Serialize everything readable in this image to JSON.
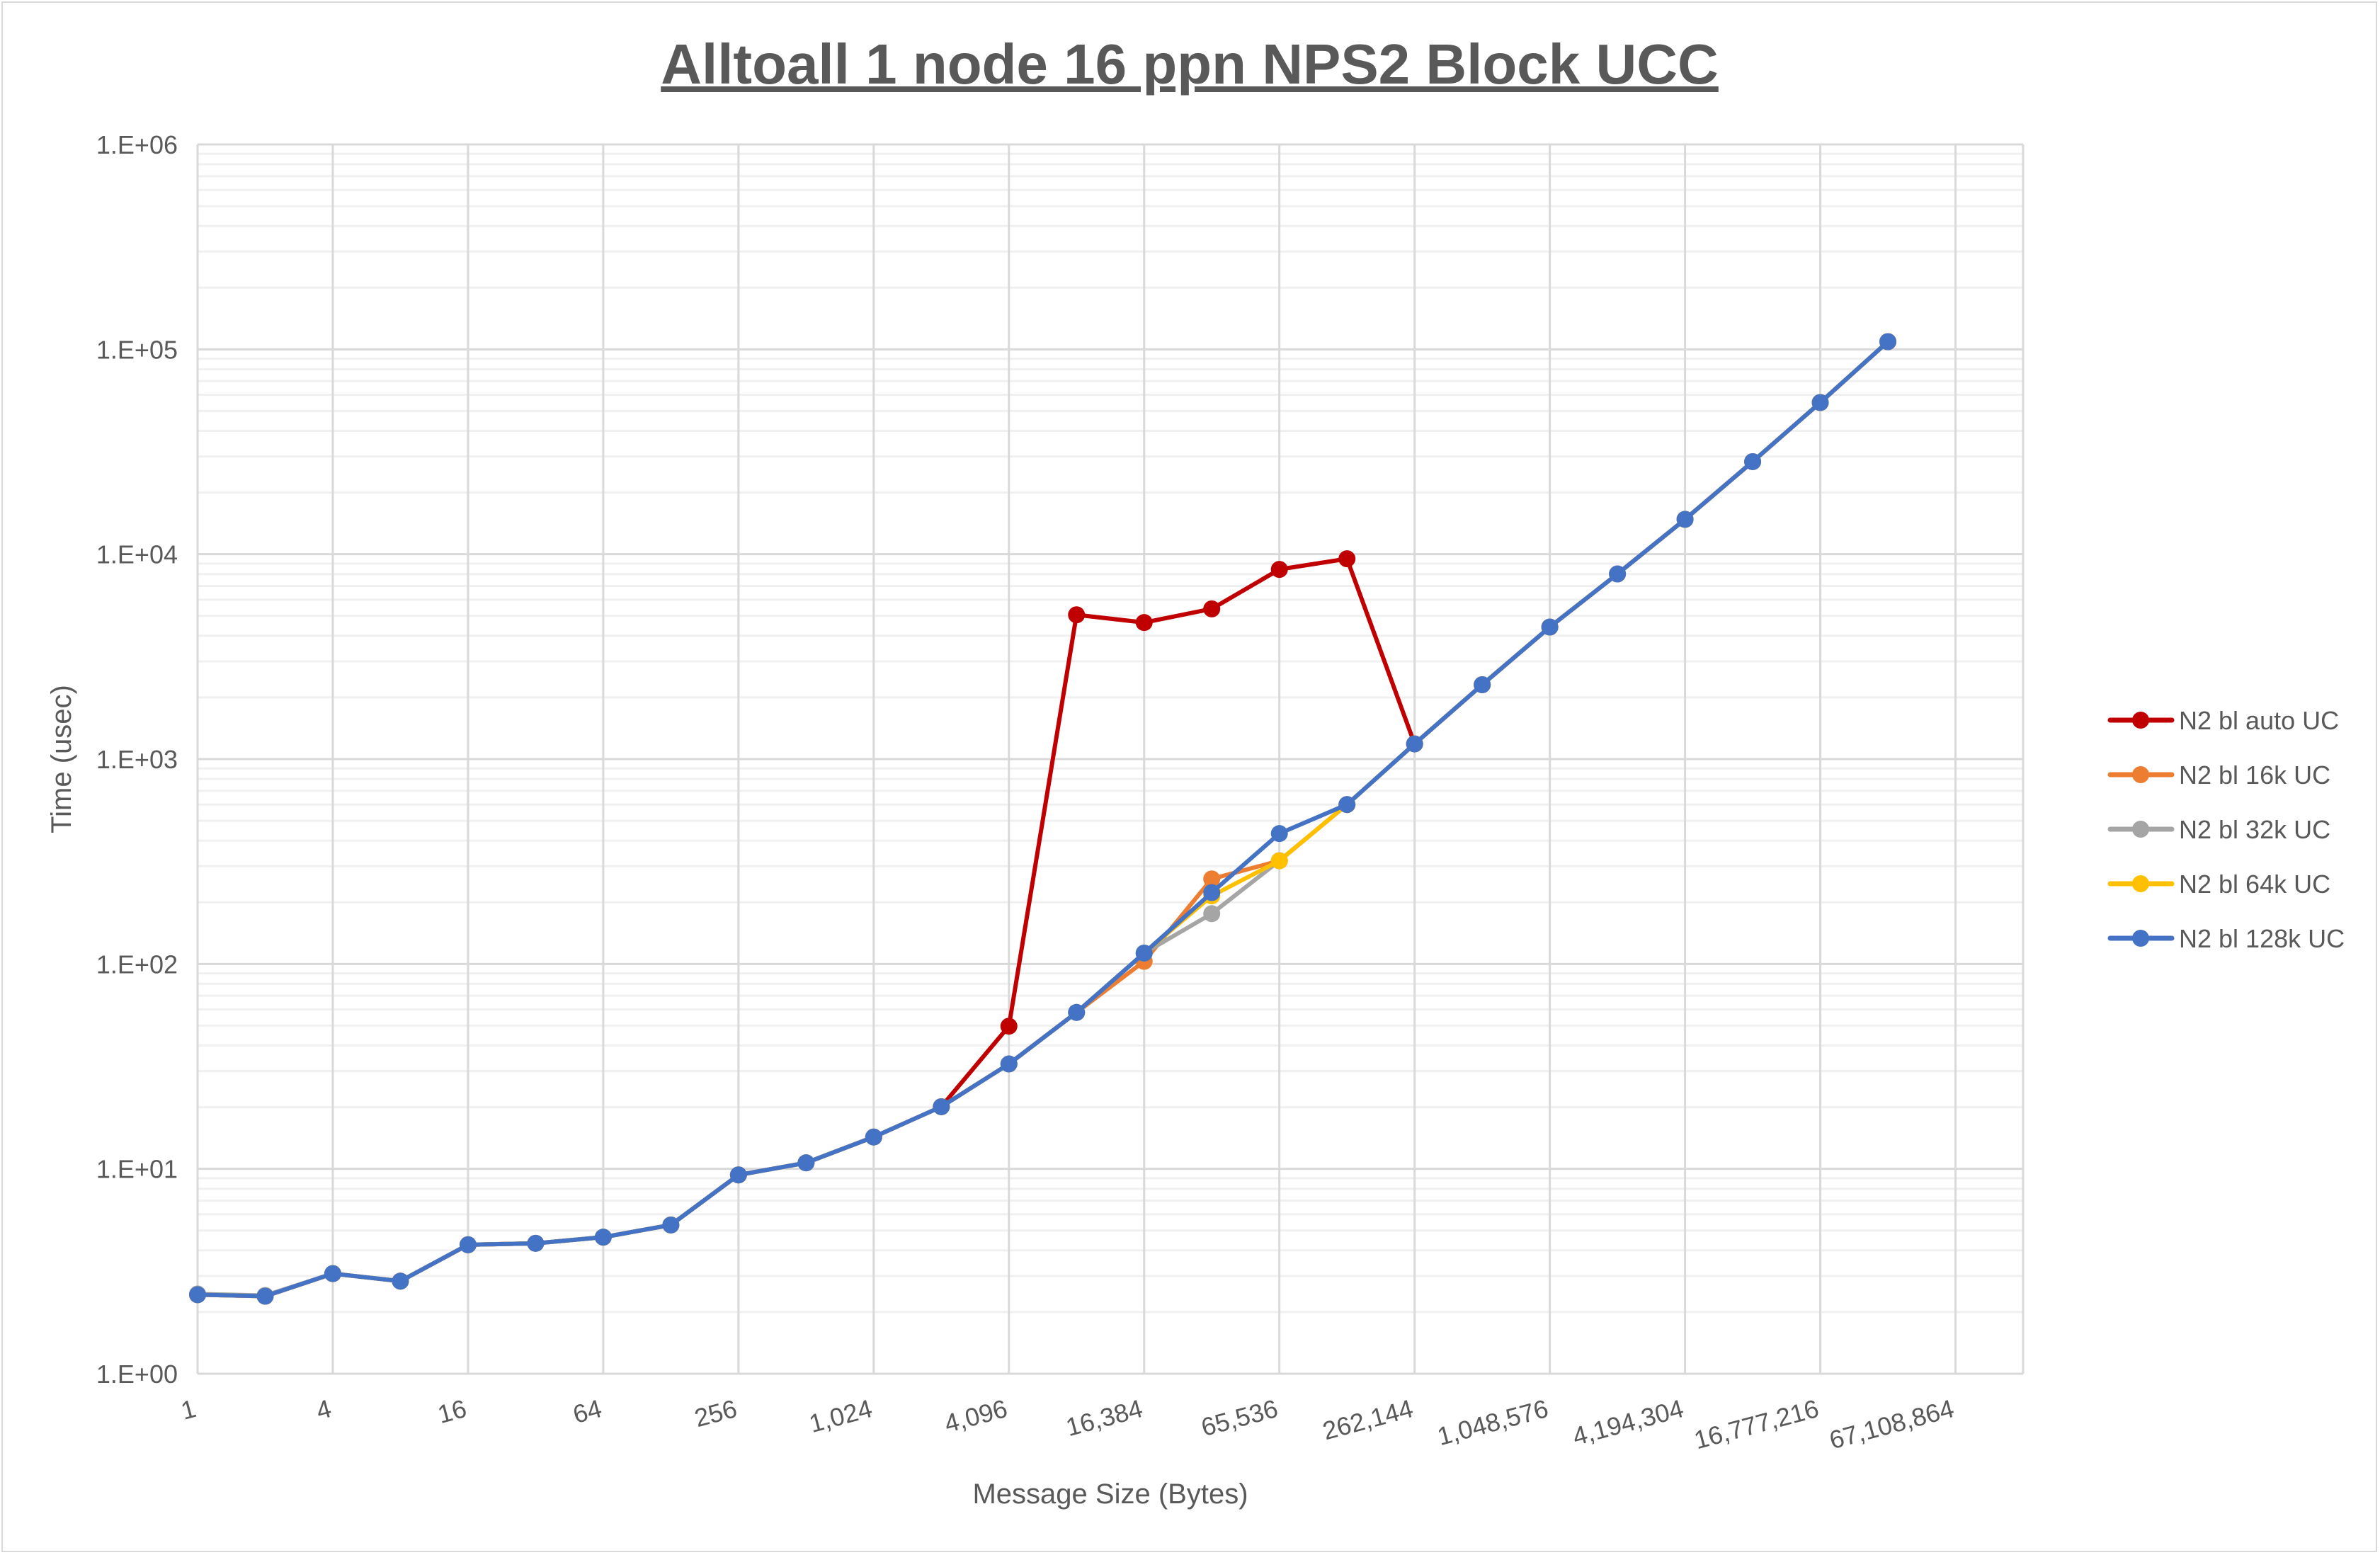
{
  "chart_data": {
    "type": "line",
    "title": "Alltoall 1 node 16 ppn NPS2 Block UCC",
    "xlabel": "Message Size (Bytes)",
    "ylabel": "Time (usec)",
    "yscale": "log",
    "ylim": [
      1,
      1000000
    ],
    "ytick_labels": [
      "1.E+00",
      "1.E+01",
      "1.E+02",
      "1.E+03",
      "1.E+04",
      "1.E+05",
      "1.E+06"
    ],
    "x": [
      1,
      2,
      4,
      8,
      16,
      32,
      64,
      128,
      256,
      512,
      1024,
      2048,
      4096,
      8192,
      16384,
      32768,
      65536,
      131072,
      262144,
      524288,
      1048576,
      2097152,
      4194304,
      8388608,
      16777216,
      33554432,
      67108864
    ],
    "xtick_labels": [
      "1",
      "4",
      "16",
      "64",
      "256",
      "1,024",
      "4,096",
      "16,384",
      "65,536",
      "262,144",
      "1,048,576",
      "4,194,304",
      "16,777,216",
      "67,108,864"
    ],
    "grid": true,
    "legend_position": "right",
    "series": [
      {
        "name": "N2 bl auto UC",
        "color": "#C00000",
        "values": [
          2.43,
          2.39,
          3.08,
          2.83,
          4.26,
          4.33,
          4.64,
          5.32,
          9.34,
          10.7,
          14.3,
          20.1,
          49.7,
          5060,
          4640,
          5410,
          8430,
          9500,
          1186,
          2306,
          4410,
          8010,
          14800,
          28300,
          55000,
          109000,
          null
        ]
      },
      {
        "name": "N2 bl 16k UC",
        "color": "#ED7D31",
        "values": [
          2.43,
          2.39,
          3.08,
          2.83,
          4.26,
          4.33,
          4.64,
          5.32,
          9.34,
          10.7,
          14.3,
          20.1,
          32.5,
          58,
          103,
          260,
          319,
          600,
          1186,
          2306,
          4410,
          8010,
          14800,
          28300,
          55000,
          109000,
          null
        ]
      },
      {
        "name": "N2 bl 32k UC",
        "color": "#A5A5A5",
        "values": [
          2.45,
          2.41,
          3.08,
          2.83,
          4.26,
          4.33,
          4.64,
          5.32,
          9.34,
          10.7,
          14.3,
          20.1,
          32.5,
          58,
          113,
          176,
          319,
          600,
          1186,
          2306,
          4410,
          8010,
          14800,
          28300,
          55000,
          109000,
          null
        ]
      },
      {
        "name": "N2 bl 64k UC",
        "color": "#FFC000",
        "values": [
          2.43,
          2.39,
          3.08,
          2.83,
          4.26,
          4.33,
          4.64,
          5.32,
          9.34,
          10.7,
          14.3,
          20.1,
          32.5,
          58,
          113,
          215,
          319,
          600,
          1186,
          2306,
          4410,
          8010,
          14800,
          28300,
          55000,
          109000,
          null
        ]
      },
      {
        "name": "N2 bl 128k UC",
        "color": "#4472C4",
        "values": [
          2.43,
          2.39,
          3.08,
          2.83,
          4.26,
          4.33,
          4.64,
          5.32,
          9.34,
          10.7,
          14.3,
          20.1,
          32.5,
          58,
          113,
          223,
          433,
          600,
          1186,
          2306,
          4410,
          8010,
          14800,
          28300,
          55000,
          109000,
          null
        ]
      }
    ]
  }
}
